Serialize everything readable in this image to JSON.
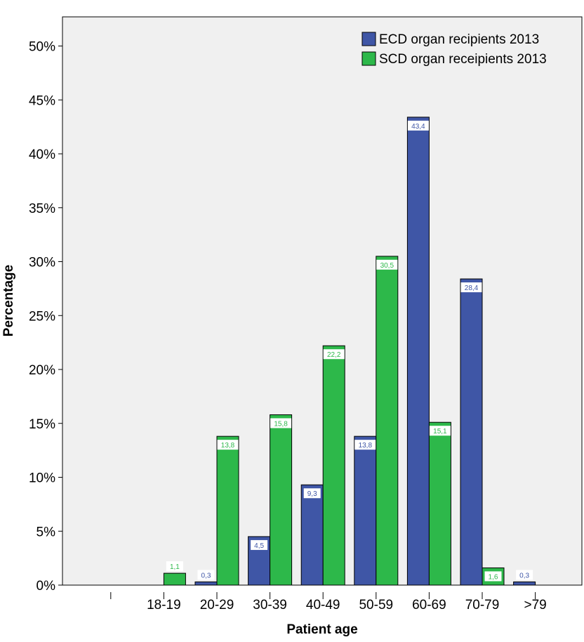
{
  "chart_data": {
    "type": "bar",
    "title": "",
    "xlabel": "Patient age",
    "ylabel": "Percentage",
    "categories": [
      "",
      "18-19",
      "20-29",
      "30-39",
      "40-49",
      "50-59",
      "60-69",
      "70-79",
      ">79"
    ],
    "series": [
      {
        "name": "ECD organ recipients 2013",
        "color": "#3F56A6",
        "values": [
          null,
          null,
          0.3,
          4.5,
          9.3,
          13.8,
          43.4,
          28.4,
          0.3
        ],
        "labels": [
          "",
          "",
          "0,3",
          "4,5",
          "9,3",
          "13,8",
          "43,4",
          "28,4",
          "0,3"
        ]
      },
      {
        "name": "SCD organ receipients 2013",
        "color": "#2DB84A",
        "values": [
          null,
          1.1,
          13.8,
          15.8,
          22.2,
          30.5,
          15.1,
          1.6,
          null
        ],
        "labels": [
          "",
          "1,1",
          "13,8",
          "15,8",
          "22,2",
          "30,5",
          "15,1",
          "1,6",
          ""
        ]
      }
    ],
    "ylim": [
      0,
      52
    ],
    "yticks": [
      {
        "value": 0,
        "label": "0%"
      },
      {
        "value": 5,
        "label": "5%"
      },
      {
        "value": 10,
        "label": "10%"
      },
      {
        "value": 15,
        "label": "15%"
      },
      {
        "value": 20,
        "label": "20%"
      },
      {
        "value": 25,
        "label": "25%"
      },
      {
        "value": 30,
        "label": "30%"
      },
      {
        "value": 35,
        "label": "35%"
      },
      {
        "value": 40,
        "label": "40%"
      },
      {
        "value": 45,
        "label": "45%"
      },
      {
        "value": 50,
        "label": "50%"
      }
    ],
    "grid": false,
    "legend_position": "top-right",
    "plot_background": "#F0F0F0"
  }
}
